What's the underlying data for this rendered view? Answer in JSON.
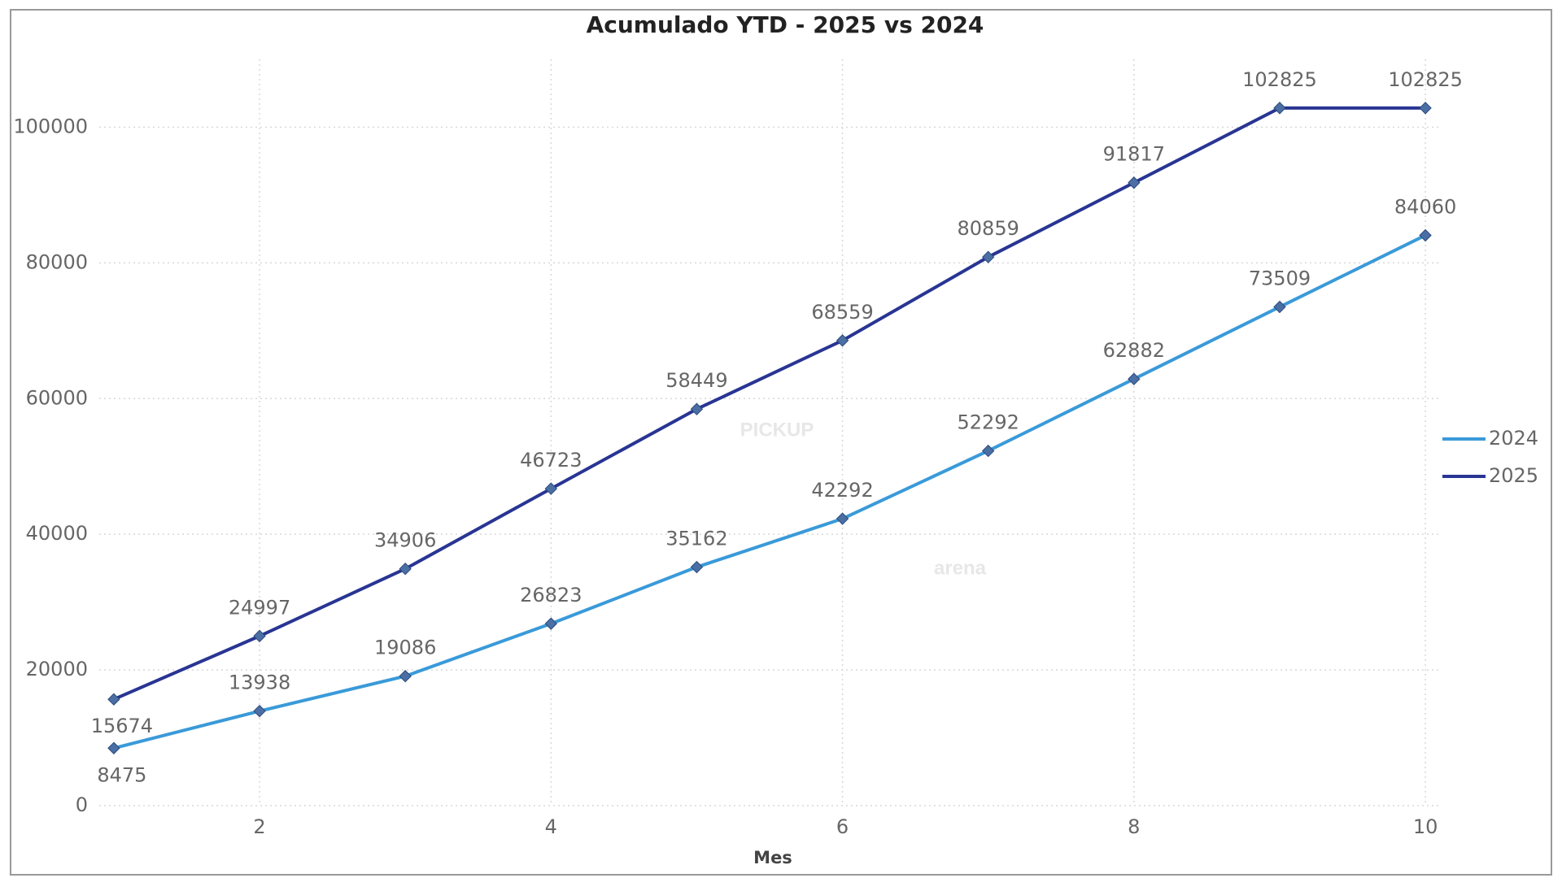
{
  "chart_data": {
    "type": "line",
    "title": "Acumulado YTD - 2025 vs 2024",
    "x_label": "Mes",
    "x": [
      1,
      2,
      3,
      4,
      5,
      6,
      7,
      8,
      9,
      10
    ],
    "series": [
      {
        "name": "2024",
        "color": "#3a9ad9",
        "values": [
          8475,
          13938,
          19086,
          26823,
          35162,
          42292,
          52292,
          62882,
          73509,
          84060
        ]
      },
      {
        "name": "2025",
        "color": "#283593",
        "values": [
          15674,
          24997,
          34906,
          46723,
          58449,
          68559,
          80859,
          91817,
          102825,
          102825
        ]
      }
    ],
    "xlim": [
      0.9,
      10.1
    ],
    "xticks": [
      2,
      4,
      6,
      8,
      10
    ],
    "ylim": [
      0,
      110000
    ],
    "yticks": [
      0,
      20000,
      40000,
      60000,
      80000,
      100000
    ],
    "grid": true,
    "legend": "right",
    "data_labels": true,
    "watermark": [
      "PICKUP",
      "arena"
    ]
  }
}
